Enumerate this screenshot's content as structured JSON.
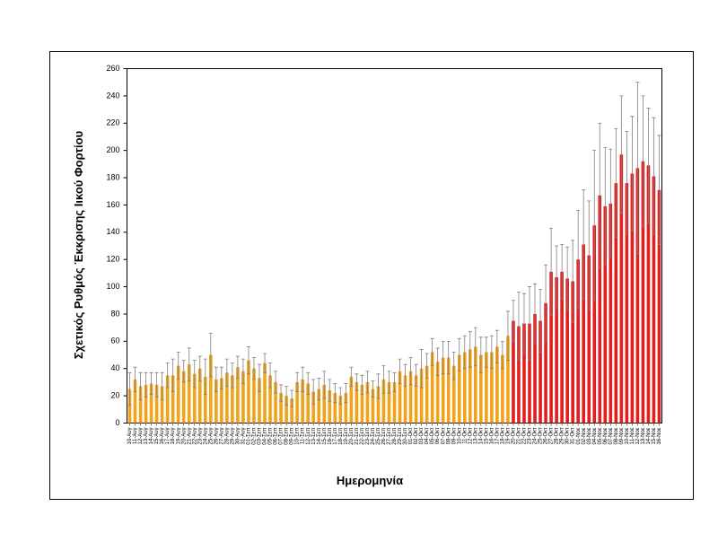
{
  "chart_data": {
    "type": "bar",
    "y_label": "Σχετικός Ρυθμός Έκκρισης Ιικού Φορτίου",
    "x_label": "Ημερομηνία",
    "ylim": [
      0,
      260
    ],
    "yticks": [
      0,
      20,
      40,
      60,
      80,
      100,
      120,
      140,
      160,
      180,
      200,
      220,
      240,
      260
    ],
    "categories": [
      "10-Αυγ",
      "11-Αυγ",
      "12-Αυγ",
      "13-Αυγ",
      "14-Αυγ",
      "15-Αυγ",
      "16-Αυγ",
      "17-Αυγ",
      "18-Αυγ",
      "19-Αυγ",
      "20-Αυγ",
      "21-Αυγ",
      "22-Αυγ",
      "23-Αυγ",
      "24-Αυγ",
      "25-Αυγ",
      "26-Αυγ",
      "27-Αυγ",
      "28-Αυγ",
      "29-Αυγ",
      "30-Αυγ",
      "31-Αυγ",
      "01-Σεπ",
      "02-Σεπ",
      "03-Σεπ",
      "04-Σεπ",
      "05-Σεπ",
      "06-Σεπ",
      "07-Σεπ",
      "08-Σεπ",
      "09-Σεπ",
      "10-Σεπ",
      "11-Σεπ",
      "12-Σεπ",
      "13-Σεπ",
      "14-Σεπ",
      "15-Σεπ",
      "16-Σεπ",
      "17-Σεπ",
      "18-Σεπ",
      "19-Σεπ",
      "20-Σεπ",
      "21-Σεπ",
      "22-Σεπ",
      "23-Σεπ",
      "24-Σεπ",
      "25-Σεπ",
      "26-Σεπ",
      "27-Σεπ",
      "28-Σεπ",
      "29-Σεπ",
      "30-Σεπ",
      "01-Οκτ",
      "02-Οκτ",
      "03-Οκτ",
      "04-Οκτ",
      "05-Οκτ",
      "06-Οκτ",
      "07-Οκτ",
      "08-Οκτ",
      "09-Οκτ",
      "10-Οκτ",
      "11-Οκτ",
      "12-Οκτ",
      "13-Οκτ",
      "14-Οκτ",
      "15-Οκτ",
      "16-Οκτ",
      "17-Οκτ",
      "18-Οκτ",
      "19-Οκτ",
      "20-Οκτ",
      "21-Οκτ",
      "22-Οκτ",
      "23-Οκτ",
      "24-Οκτ",
      "25-Οκτ",
      "26-Οκτ",
      "27-Οκτ",
      "28-Οκτ",
      "29-Οκτ",
      "30-Οκτ",
      "31-Οκτ",
      "01-Νοε",
      "02-Νοε",
      "03-Νοε",
      "04-Νοε",
      "05-Νοε",
      "06-Νοε",
      "07-Νοε",
      "08-Νοε",
      "09-Νοε",
      "10-Νοε",
      "11-Νοε",
      "12-Νοε",
      "13-Νοε",
      "14-Νοε",
      "15-Νοε",
      "16-Νοε"
    ],
    "series": [
      {
        "color": "#f2a31b",
        "error_color": "#7f7f7f",
        "values": [
          25,
          32,
          27,
          28,
          29,
          28,
          27,
          35,
          35,
          42,
          38,
          43,
          36,
          40,
          34,
          50,
          32,
          33,
          37,
          35,
          41,
          38,
          46,
          40,
          33,
          44,
          35,
          30,
          22,
          20,
          18,
          30,
          32,
          29,
          23,
          25,
          28,
          24,
          22,
          20,
          22,
          34,
          30,
          28,
          30,
          25,
          27,
          32,
          30,
          30,
          38,
          35,
          38,
          35,
          40,
          42,
          52,
          45,
          48,
          48,
          42,
          50,
          52,
          54,
          56,
          50,
          52,
          52,
          56,
          50,
          64,
          null,
          null,
          null,
          null,
          null,
          null,
          null,
          null,
          null,
          null,
          null,
          null,
          null,
          null,
          null,
          null,
          null,
          null,
          null,
          null,
          null,
          null,
          null,
          null,
          null,
          null,
          null,
          null
        ],
        "errors": [
          12,
          9,
          10,
          9,
          8,
          9,
          10,
          9,
          12,
          10,
          8,
          12,
          10,
          9,
          13,
          16,
          9,
          8,
          10,
          9,
          8,
          9,
          10,
          8,
          10,
          7,
          9,
          8,
          6,
          7,
          6,
          7,
          9,
          8,
          9,
          8,
          10,
          8,
          7,
          6,
          7,
          7,
          6,
          7,
          8,
          6,
          9,
          10,
          8,
          7,
          9,
          8,
          10,
          8,
          14,
          9,
          10,
          10,
          12,
          12,
          10,
          12,
          12,
          13,
          14,
          13,
          11,
          12,
          12,
          10,
          18,
          null,
          null,
          null,
          null,
          null,
          null,
          null,
          null,
          null,
          null,
          null,
          null,
          null,
          null,
          null,
          null,
          null,
          null,
          null,
          null,
          null,
          null,
          null,
          null,
          null,
          null,
          null,
          null
        ]
      },
      {
        "color": "#e01f1f",
        "error_color": "#7f7f7f",
        "values": [
          null,
          null,
          null,
          null,
          null,
          null,
          null,
          null,
          null,
          null,
          null,
          null,
          null,
          null,
          null,
          null,
          null,
          null,
          null,
          null,
          null,
          null,
          null,
          null,
          null,
          null,
          null,
          null,
          null,
          null,
          null,
          null,
          null,
          null,
          null,
          null,
          null,
          null,
          null,
          null,
          null,
          null,
          null,
          null,
          null,
          null,
          null,
          null,
          null,
          null,
          null,
          null,
          null,
          null,
          null,
          null,
          null,
          null,
          null,
          null,
          null,
          null,
          null,
          null,
          null,
          null,
          null,
          null,
          null,
          null,
          null,
          75,
          71,
          73,
          73,
          80,
          75,
          88,
          111,
          107,
          111,
          106,
          104,
          120,
          131,
          123,
          145,
          167,
          159,
          161,
          176,
          197,
          176,
          183,
          187,
          192,
          189,
          181,
          171
        ],
        "errors": [
          null,
          null,
          null,
          null,
          null,
          null,
          null,
          null,
          null,
          null,
          null,
          null,
          null,
          null,
          null,
          null,
          null,
          null,
          null,
          null,
          null,
          null,
          null,
          null,
          null,
          null,
          null,
          null,
          null,
          null,
          null,
          null,
          null,
          null,
          null,
          null,
          null,
          null,
          null,
          null,
          null,
          null,
          null,
          null,
          null,
          null,
          null,
          null,
          null,
          null,
          null,
          null,
          null,
          null,
          null,
          null,
          null,
          null,
          null,
          null,
          null,
          null,
          null,
          null,
          null,
          null,
          null,
          null,
          null,
          null,
          null,
          15,
          25,
          22,
          27,
          22,
          23,
          28,
          32,
          23,
          20,
          23,
          30,
          36,
          40,
          40,
          55,
          53,
          43,
          40,
          40,
          43,
          38,
          42,
          63,
          48,
          42,
          43,
          40
        ]
      }
    ]
  }
}
